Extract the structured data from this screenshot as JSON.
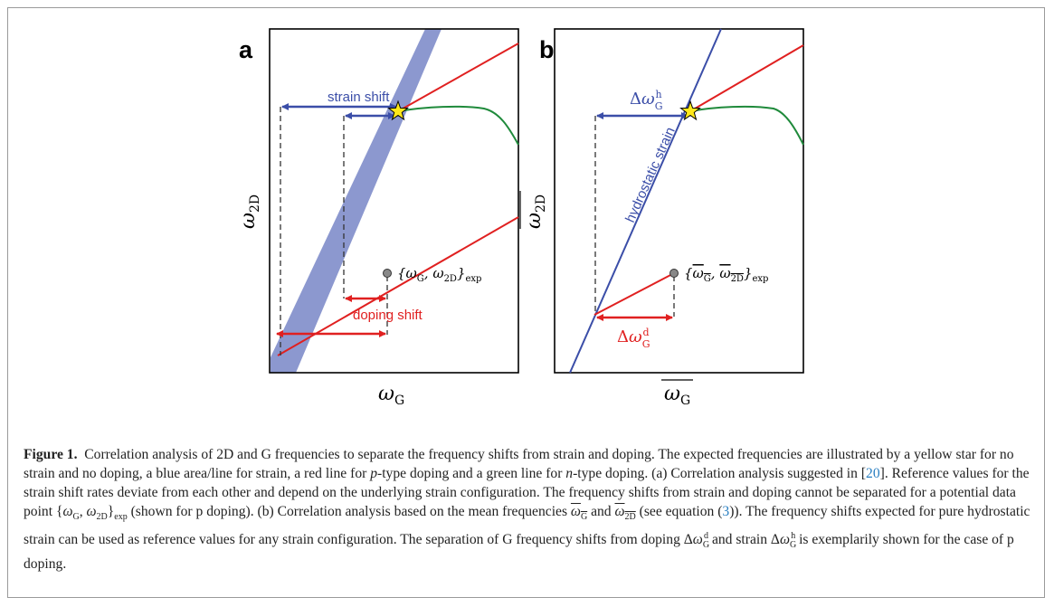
{
  "figure": {
    "panel_a": {
      "letter": "a",
      "x_axis_label": "ωG",
      "y_axis_label": "ω2D",
      "strain_shift_label": "strain shift",
      "doping_shift_label": "doping shift",
      "data_point_label": "{ωG, ω2D}exp"
    },
    "panel_b": {
      "letter": "b",
      "x_axis_label": "ωG (mean)",
      "y_axis_label": "ω2D (mean)",
      "hydrostatic_label": "hydrostatic strain",
      "strain_delta_label": "ΔωGh",
      "doping_delta_label": "ΔωGd",
      "data_point_label": "{ωG, ω2D}exp (mean)"
    },
    "colors": {
      "strain": "#3b4ea8",
      "strain_area": "#8c98cf",
      "p_doping": "#e02020",
      "n_doping": "#1f8a3b",
      "star": "#ffe81a",
      "point": "#888888"
    }
  },
  "caption": {
    "label": "Figure 1.",
    "s1": "Correlation analysis of 2D and G frequencies to separate the frequency shifts from strain and doping. The expected frequencies are illustrated by a yellow star for no strain and no doping, a blue area/line for strain, a red line for ",
    "p": "p",
    "s2": "-type doping and a green line for ",
    "n": "n",
    "s3": "-type doping. (a) Correlation analysis suggested in [",
    "ref": "20",
    "s4": "]. Reference values for the strain shift rates deviate from each other and depend on the underlying strain configuration. The frequency shifts from strain and doping cannot be separated for a potential data point ",
    "s5": " (shown for p doping). (b) Correlation analysis based on the mean frequencies ",
    "and": " and ",
    "s6": " (see equation (",
    "eq": "3",
    "s7": ")). The frequency shifts expected for pure hydrostatic strain can be used as reference values for any strain configuration. The separation of G frequency shifts from doping ",
    "s8": " and strain ",
    "s9": " is exemplarily shown for the case of p doping."
  }
}
